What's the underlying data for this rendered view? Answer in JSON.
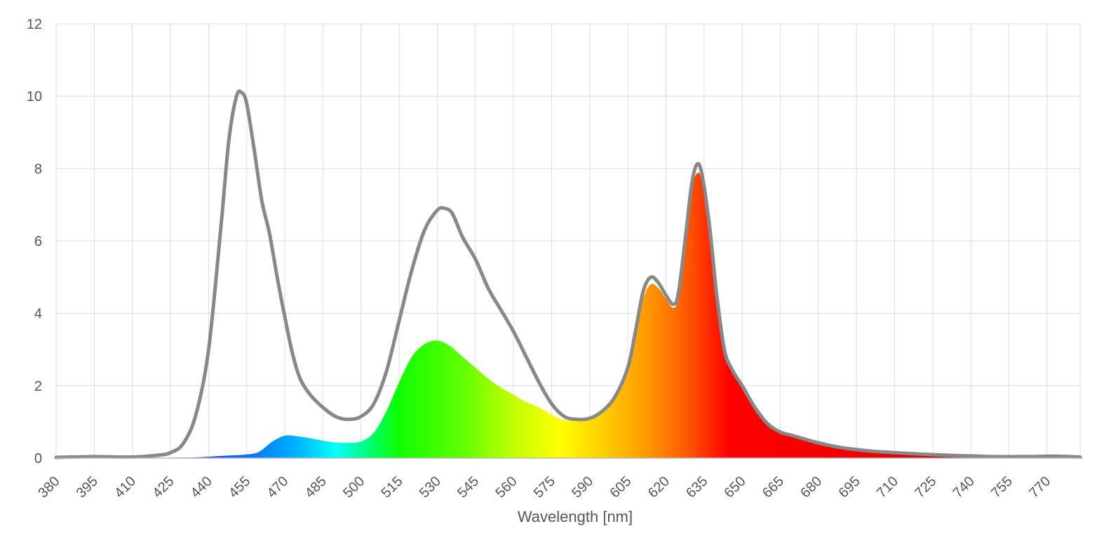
{
  "chart_data": {
    "type": "area",
    "title": "",
    "xlabel": "Wavelength [nm]",
    "ylabel": "",
    "xlim": [
      380,
      783
    ],
    "ylim": [
      0,
      12
    ],
    "x_ticks": [
      380,
      395,
      410,
      425,
      440,
      455,
      470,
      485,
      500,
      515,
      530,
      545,
      560,
      575,
      590,
      605,
      620,
      635,
      650,
      665,
      680,
      695,
      710,
      725,
      740,
      755,
      770
    ],
    "y_ticks": [
      0,
      2,
      4,
      6,
      8,
      10,
      12
    ],
    "grid": true,
    "series": [
      {
        "style": "line",
        "color": "#888888",
        "points": [
          [
            380,
            0.02
          ],
          [
            395,
            0.04
          ],
          [
            410,
            0.03
          ],
          [
            420,
            0.08
          ],
          [
            425,
            0.15
          ],
          [
            430,
            0.4
          ],
          [
            435,
            1.2
          ],
          [
            440,
            3.0
          ],
          [
            445,
            6.5
          ],
          [
            448,
            8.8
          ],
          [
            451,
            10.0
          ],
          [
            453,
            10.1
          ],
          [
            455,
            9.8
          ],
          [
            458,
            8.5
          ],
          [
            461,
            7.1
          ],
          [
            464,
            6.2
          ],
          [
            467,
            5.0
          ],
          [
            470,
            3.9
          ],
          [
            473,
            2.9
          ],
          [
            476,
            2.2
          ],
          [
            480,
            1.75
          ],
          [
            485,
            1.4
          ],
          [
            490,
            1.15
          ],
          [
            495,
            1.07
          ],
          [
            500,
            1.15
          ],
          [
            505,
            1.5
          ],
          [
            510,
            2.4
          ],
          [
            515,
            3.8
          ],
          [
            520,
            5.2
          ],
          [
            525,
            6.3
          ],
          [
            530,
            6.85
          ],
          [
            533,
            6.9
          ],
          [
            536,
            6.75
          ],
          [
            540,
            6.1
          ],
          [
            545,
            5.5
          ],
          [
            550,
            4.7
          ],
          [
            555,
            4.1
          ],
          [
            560,
            3.5
          ],
          [
            565,
            2.8
          ],
          [
            570,
            2.1
          ],
          [
            575,
            1.5
          ],
          [
            580,
            1.15
          ],
          [
            585,
            1.07
          ],
          [
            590,
            1.1
          ],
          [
            595,
            1.3
          ],
          [
            600,
            1.7
          ],
          [
            605,
            2.5
          ],
          [
            608,
            3.5
          ],
          [
            611,
            4.6
          ],
          [
            614,
            5.0
          ],
          [
            617,
            4.85
          ],
          [
            620,
            4.5
          ],
          [
            623,
            4.25
          ],
          [
            625,
            4.6
          ],
          [
            628,
            6.3
          ],
          [
            630,
            7.5
          ],
          [
            632,
            8.1
          ],
          [
            634,
            7.9
          ],
          [
            637,
            6.5
          ],
          [
            640,
            4.5
          ],
          [
            643,
            3.0
          ],
          [
            646,
            2.45
          ],
          [
            650,
            2.0
          ],
          [
            655,
            1.4
          ],
          [
            660,
            0.95
          ],
          [
            665,
            0.72
          ],
          [
            670,
            0.62
          ],
          [
            680,
            0.42
          ],
          [
            690,
            0.28
          ],
          [
            700,
            0.2
          ],
          [
            710,
            0.15
          ],
          [
            720,
            0.11
          ],
          [
            730,
            0.08
          ],
          [
            740,
            0.06
          ],
          [
            750,
            0.04
          ],
          [
            760,
            0.04
          ],
          [
            770,
            0.05
          ],
          [
            775,
            0.05
          ],
          [
            783,
            0.03
          ]
        ]
      },
      {
        "style": "area",
        "fill": "spectrum",
        "points": [
          [
            380,
            0.01
          ],
          [
            400,
            0.01
          ],
          [
            420,
            0.01
          ],
          [
            435,
            0.02
          ],
          [
            445,
            0.06
          ],
          [
            455,
            0.1
          ],
          [
            460,
            0.18
          ],
          [
            465,
            0.45
          ],
          [
            470,
            0.62
          ],
          [
            475,
            0.6
          ],
          [
            480,
            0.55
          ],
          [
            485,
            0.48
          ],
          [
            490,
            0.43
          ],
          [
            495,
            0.42
          ],
          [
            500,
            0.46
          ],
          [
            505,
            0.7
          ],
          [
            510,
            1.3
          ],
          [
            515,
            2.1
          ],
          [
            520,
            2.8
          ],
          [
            525,
            3.15
          ],
          [
            530,
            3.25
          ],
          [
            535,
            3.1
          ],
          [
            540,
            2.8
          ],
          [
            545,
            2.5
          ],
          [
            550,
            2.2
          ],
          [
            555,
            1.95
          ],
          [
            560,
            1.75
          ],
          [
            565,
            1.55
          ],
          [
            570,
            1.4
          ],
          [
            575,
            1.2
          ],
          [
            580,
            1.05
          ],
          [
            585,
            1.03
          ],
          [
            590,
            1.1
          ],
          [
            595,
            1.3
          ],
          [
            600,
            1.7
          ],
          [
            605,
            2.5
          ],
          [
            608,
            3.4
          ],
          [
            611,
            4.4
          ],
          [
            614,
            4.8
          ],
          [
            617,
            4.7
          ],
          [
            620,
            4.4
          ],
          [
            623,
            4.15
          ],
          [
            625,
            4.5
          ],
          [
            628,
            6.2
          ],
          [
            630,
            7.4
          ],
          [
            632,
            7.85
          ],
          [
            634,
            7.7
          ],
          [
            637,
            6.4
          ],
          [
            640,
            4.4
          ],
          [
            643,
            3.0
          ],
          [
            646,
            2.45
          ],
          [
            650,
            2.0
          ],
          [
            655,
            1.4
          ],
          [
            660,
            0.95
          ],
          [
            665,
            0.72
          ],
          [
            670,
            0.62
          ],
          [
            680,
            0.42
          ],
          [
            690,
            0.28
          ],
          [
            700,
            0.2
          ],
          [
            710,
            0.15
          ],
          [
            720,
            0.11
          ],
          [
            730,
            0.08
          ],
          [
            740,
            0.06
          ],
          [
            750,
            0.04
          ],
          [
            760,
            0.04
          ],
          [
            770,
            0.05
          ],
          [
            775,
            0.05
          ],
          [
            783,
            0.03
          ]
        ]
      }
    ],
    "spectrum_stops": [
      {
        "nm": 380,
        "color": "#4b0082"
      },
      {
        "nm": 420,
        "color": "#5a00ff"
      },
      {
        "nm": 440,
        "color": "#1e40ff"
      },
      {
        "nm": 460,
        "color": "#0080ff"
      },
      {
        "nm": 475,
        "color": "#00b4ff"
      },
      {
        "nm": 490,
        "color": "#00ffff"
      },
      {
        "nm": 505,
        "color": "#00ff60"
      },
      {
        "nm": 515,
        "color": "#10ff00"
      },
      {
        "nm": 540,
        "color": "#60ff00"
      },
      {
        "nm": 560,
        "color": "#c0ff00"
      },
      {
        "nm": 578,
        "color": "#ffff00"
      },
      {
        "nm": 600,
        "color": "#ffc000"
      },
      {
        "nm": 615,
        "color": "#ff9000"
      },
      {
        "nm": 630,
        "color": "#ff5000"
      },
      {
        "nm": 645,
        "color": "#ff0000"
      },
      {
        "nm": 700,
        "color": "#ee0000"
      },
      {
        "nm": 740,
        "color": "#cc0000"
      },
      {
        "nm": 783,
        "color": "#6e0000"
      }
    ]
  }
}
